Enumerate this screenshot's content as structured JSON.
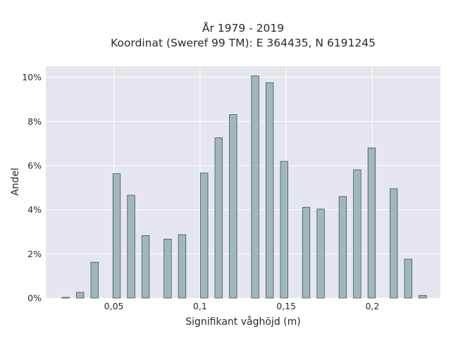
{
  "chart_data": {
    "type": "bar",
    "title": "År 1979 - 2019",
    "subtitle": "Koordinat (Sweref 99 TM): E 364435, N 6191245",
    "xlabel": "Signifikant våghöjd (m)",
    "ylabel": "Andel",
    "xlim": [
      0.0105,
      0.2395
    ],
    "ylim": [
      0,
      10.5
    ],
    "x_ticks": [
      {
        "value": 0.05,
        "label": "0,05"
      },
      {
        "value": 0.1,
        "label": "0,1"
      },
      {
        "value": 0.15,
        "label": "0,15"
      },
      {
        "value": 0.2,
        "label": "0,2"
      }
    ],
    "y_ticks": [
      {
        "value": 0,
        "label": "0%"
      },
      {
        "value": 2,
        "label": "2%"
      },
      {
        "value": 4,
        "label": "4%"
      },
      {
        "value": 6,
        "label": "6%"
      },
      {
        "value": 8,
        "label": "8%"
      },
      {
        "value": 10,
        "label": "10%"
      }
    ],
    "unit": "%",
    "grid": true,
    "bar_width": 0.0043,
    "bars": [
      {
        "x": 0.022,
        "value": 0.03
      },
      {
        "x": 0.0304,
        "value": 0.26
      },
      {
        "x": 0.0388,
        "value": 1.62
      },
      {
        "x": 0.0516,
        "value": 5.63
      },
      {
        "x": 0.06,
        "value": 4.66
      },
      {
        "x": 0.0684,
        "value": 2.83
      },
      {
        "x": 0.0812,
        "value": 2.67
      },
      {
        "x": 0.0896,
        "value": 2.87
      },
      {
        "x": 0.1024,
        "value": 5.66
      },
      {
        "x": 0.1108,
        "value": 7.26
      },
      {
        "x": 0.1192,
        "value": 8.31
      },
      {
        "x": 0.132,
        "value": 10.06
      },
      {
        "x": 0.1404,
        "value": 9.75
      },
      {
        "x": 0.1488,
        "value": 6.19
      },
      {
        "x": 0.1616,
        "value": 4.11
      },
      {
        "x": 0.17,
        "value": 4.03
      },
      {
        "x": 0.1828,
        "value": 4.6
      },
      {
        "x": 0.1912,
        "value": 5.81
      },
      {
        "x": 0.1996,
        "value": 6.8
      },
      {
        "x": 0.2124,
        "value": 4.95
      },
      {
        "x": 0.2208,
        "value": 1.76
      },
      {
        "x": 0.2292,
        "value": 0.12
      }
    ],
    "colors": {
      "plot_bg": "#e6e6ef",
      "grid": "#ffffff",
      "bar_fill": "#9fb8b8",
      "bar_stroke": "#3f5454"
    }
  }
}
